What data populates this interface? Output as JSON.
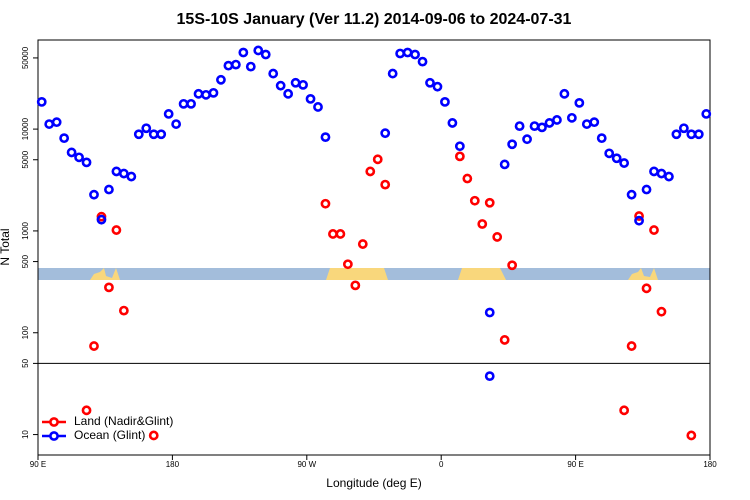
{
  "chart_data": {
    "type": "scatter",
    "title": "15S-10S January (Ver 11.2)   2014-09-06 to 2024-07-31",
    "x_label": "Longitude (deg E)",
    "y_label": "N Total",
    "y_log": true,
    "xlim": [
      90,
      540
    ],
    "ylim": [
      6.3,
      75000
    ],
    "xticks": [
      {
        "value": 90,
        "label": "90 E"
      },
      {
        "value": 180,
        "label": "180"
      },
      {
        "value": 270,
        "label": "90 W"
      },
      {
        "value": 360,
        "label": "0"
      },
      {
        "value": 450,
        "label": "90 E"
      },
      {
        "value": 540,
        "label": "180"
      }
    ],
    "yticks": [
      10,
      50,
      100,
      500,
      1000,
      5000,
      10000,
      50000
    ],
    "hline": 50,
    "legend": "bottom-left",
    "series": [
      {
        "name": "Land (Nadir&Glint)",
        "color": "#ff0000",
        "x": [
          127.5,
          122.5,
          132.5,
          137.5,
          142.5,
          147.5,
          167.5,
          282.5,
          287.5,
          292.5,
          297.5,
          302.5,
          307.5,
          312.5,
          317.5,
          322.5,
          372.5,
          377.5,
          382.5,
          387.5,
          392.5,
          397.5,
          402.5,
          407.5,
          482.5,
          487.5,
          492.5,
          497.5,
          502.5,
          507.5,
          527.5
        ],
        "values": [
          74,
          17.3,
          1380,
          279,
          1020,
          165,
          9.8,
          1850,
          934,
          934,
          471,
          292,
          743,
          3840,
          5050,
          2850,
          5400,
          3270,
          1980,
          1170,
          1890,
          873,
          85,
          460,
          17.3,
          74,
          1400,
          273,
          1020,
          161,
          9.8
        ]
      },
      {
        "name": "Ocean (Glint)",
        "color": "#0000ff",
        "x": [
          92.5,
          97.5,
          102.5,
          107.5,
          112.5,
          117.5,
          122.5,
          127.5,
          132.5,
          137.5,
          142.5,
          147.5,
          152.5,
          157.5,
          162.5,
          167.5,
          172.5,
          177.5,
          182.5,
          187.5,
          192.5,
          197.5,
          202.5,
          207.5,
          212.5,
          217.5,
          222.5,
          227.5,
          232.5,
          237.5,
          242.5,
          247.5,
          252.5,
          257.5,
          262.5,
          267.5,
          272.5,
          277.5,
          282.5,
          322.5,
          327.5,
          332.5,
          337.5,
          342.5,
          347.5,
          352.5,
          357.5,
          362.5,
          367.5,
          372.5,
          392.5,
          392.5,
          402.5,
          407.5,
          412.5,
          417.5,
          422.5,
          427.5,
          432.5,
          437.5,
          442.5,
          447.5,
          452.5,
          457.5,
          462.5,
          467.5,
          472.5,
          477.5,
          482.5,
          487.5,
          492.5,
          497.5,
          502.5,
          507.5,
          512.5,
          517.5,
          522.5,
          527.5,
          532.5,
          537.5
        ],
        "values": [
          18500,
          11200,
          11700,
          8150,
          5900,
          5280,
          4710,
          2270,
          1290,
          2550,
          3840,
          3660,
          3420,
          8900,
          10200,
          8900,
          8900,
          14100,
          11200,
          17700,
          17700,
          22200,
          21700,
          22700,
          30500,
          42000,
          43000,
          56500,
          41100,
          59200,
          54000,
          35100,
          26700,
          22200,
          28500,
          27200,
          19800,
          16500,
          8340,
          9120,
          35100,
          55300,
          56500,
          54000,
          46000,
          28500,
          26100,
          18500,
          11500,
          6790,
          158,
          37.5,
          4500,
          7100,
          10700,
          7960,
          10700,
          10400,
          11500,
          12300,
          22200,
          12900,
          18100,
          11200,
          11700,
          8150,
          5780,
          5170,
          4640,
          2270,
          1260,
          2550,
          3840,
          3660,
          3420,
          8900,
          10200,
          8900,
          8900,
          14100
        ]
      }
    ]
  }
}
